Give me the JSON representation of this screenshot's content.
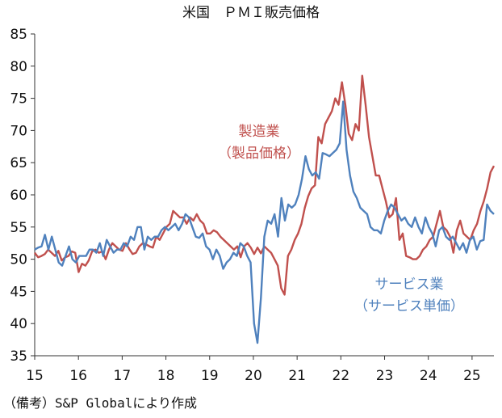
{
  "chart_data": {
    "type": "line",
    "title": "米国　ＰＭＩ販売価格",
    "ylim": [
      35,
      85
    ],
    "y_ticks": [
      "35",
      "40",
      "45",
      "50",
      "55",
      "60",
      "65",
      "70",
      "75",
      "80",
      "85"
    ],
    "x_tick_labels": [
      "15",
      "16",
      "17",
      "18",
      "19",
      "20",
      "21",
      "22",
      "23",
      "24",
      "25"
    ],
    "x_start_year": 15,
    "x_end": 25.5,
    "grid": false,
    "series": [
      {
        "name": "製造業",
        "name_sub": "（製品価格）",
        "color": "#c0504d",
        "values": [
          51.0,
          50.3,
          50.5,
          50.8,
          51.5,
          51.0,
          50.5,
          51.3,
          49.8,
          50.3,
          50.5,
          51.2,
          51.0,
          48.0,
          49.3,
          49.0,
          49.8,
          51.2,
          51.5,
          51.0,
          51.2,
          50.0,
          51.5,
          52.5,
          52.0,
          51.5,
          51.3,
          52.5,
          51.6,
          50.8,
          51.0,
          52.0,
          52.5,
          52.3,
          52.0,
          51.8,
          53.5,
          53.0,
          54.0,
          55.0,
          55.5,
          57.5,
          57.0,
          56.5,
          56.5,
          55.5,
          56.5,
          56.0,
          57.0,
          56.0,
          55.5,
          54.0,
          54.0,
          54.5,
          54.2,
          53.5,
          53.0,
          52.5,
          52.0,
          51.5,
          52.0,
          50.3,
          52.0,
          52.5,
          51.8,
          50.8,
          51.8,
          50.9,
          52.0,
          51.5,
          51.0,
          50.0,
          49.0,
          45.5,
          44.5,
          50.5,
          51.5,
          53.0,
          54.0,
          55.5,
          58.0,
          59.8,
          61.0,
          61.5,
          69.0,
          68.0,
          71.0,
          72.0,
          73.0,
          75.0,
          74.0,
          77.5,
          74.0,
          69.5,
          68.5,
          71.0,
          70.0,
          78.5,
          74.0,
          69.0,
          66.0,
          63.0,
          63.0,
          61.0,
          59.0,
          56.5,
          57.0,
          59.5,
          53.0,
          54.0,
          50.5,
          50.3,
          50.0,
          50.0,
          50.5,
          51.5,
          52.0,
          53.0,
          53.5,
          55.5,
          57.5,
          55.0,
          54.5,
          53.5,
          51.0,
          54.5,
          56.0,
          54.0,
          53.5,
          53.0,
          54.5,
          55.5,
          57.5,
          59.0,
          61.0,
          63.5,
          64.5
        ]
      },
      {
        "name": "サービス業",
        "name_sub": "（サービス単価）",
        "color": "#4f81bd",
        "values": [
          51.5,
          51.8,
          52.0,
          53.8,
          51.5,
          53.5,
          51.5,
          49.5,
          49.0,
          50.5,
          52.0,
          50.0,
          49.5,
          50.5,
          50.5,
          50.5,
          51.5,
          51.5,
          51.0,
          52.5,
          50.5,
          53.0,
          52.0,
          51.0,
          51.5,
          51.5,
          52.5,
          52.0,
          53.5,
          53.0,
          55.0,
          55.0,
          51.5,
          53.5,
          53.0,
          53.5,
          53.5,
          54.5,
          55.0,
          54.5,
          55.0,
          55.5,
          54.5,
          55.5,
          57.0,
          56.5,
          55.0,
          53.5,
          53.3,
          54.0,
          52.0,
          51.5,
          50.0,
          51.5,
          50.5,
          48.5,
          49.5,
          50.0,
          51.0,
          50.5,
          52.5,
          52.0,
          50.5,
          49.5,
          40.0,
          37.0,
          44.0,
          53.5,
          56.0,
          55.5,
          57.0,
          53.5,
          59.5,
          56.0,
          58.5,
          58.0,
          58.5,
          60.0,
          62.5,
          66.0,
          64.0,
          63.0,
          63.5,
          62.5,
          66.5,
          66.3,
          66.0,
          66.5,
          67.0,
          68.0,
          74.5,
          67.0,
          63.0,
          60.5,
          59.5,
          58.0,
          57.5,
          57.0,
          55.0,
          54.5,
          54.5,
          54.0,
          56.0,
          57.5,
          58.5,
          58.0,
          57.0,
          56.0,
          56.5,
          55.5,
          55.0,
          56.5,
          55.0,
          54.0,
          56.5,
          55.0,
          54.0,
          52.0,
          54.5,
          55.0,
          53.5,
          53.0,
          53.5,
          52.5,
          51.5,
          52.5,
          51.0,
          53.0,
          53.5,
          51.5,
          52.8,
          53.0,
          58.5,
          57.5,
          57.0
        ]
      }
    ],
    "source_note": "（備考）S&P Globalにより作成"
  }
}
